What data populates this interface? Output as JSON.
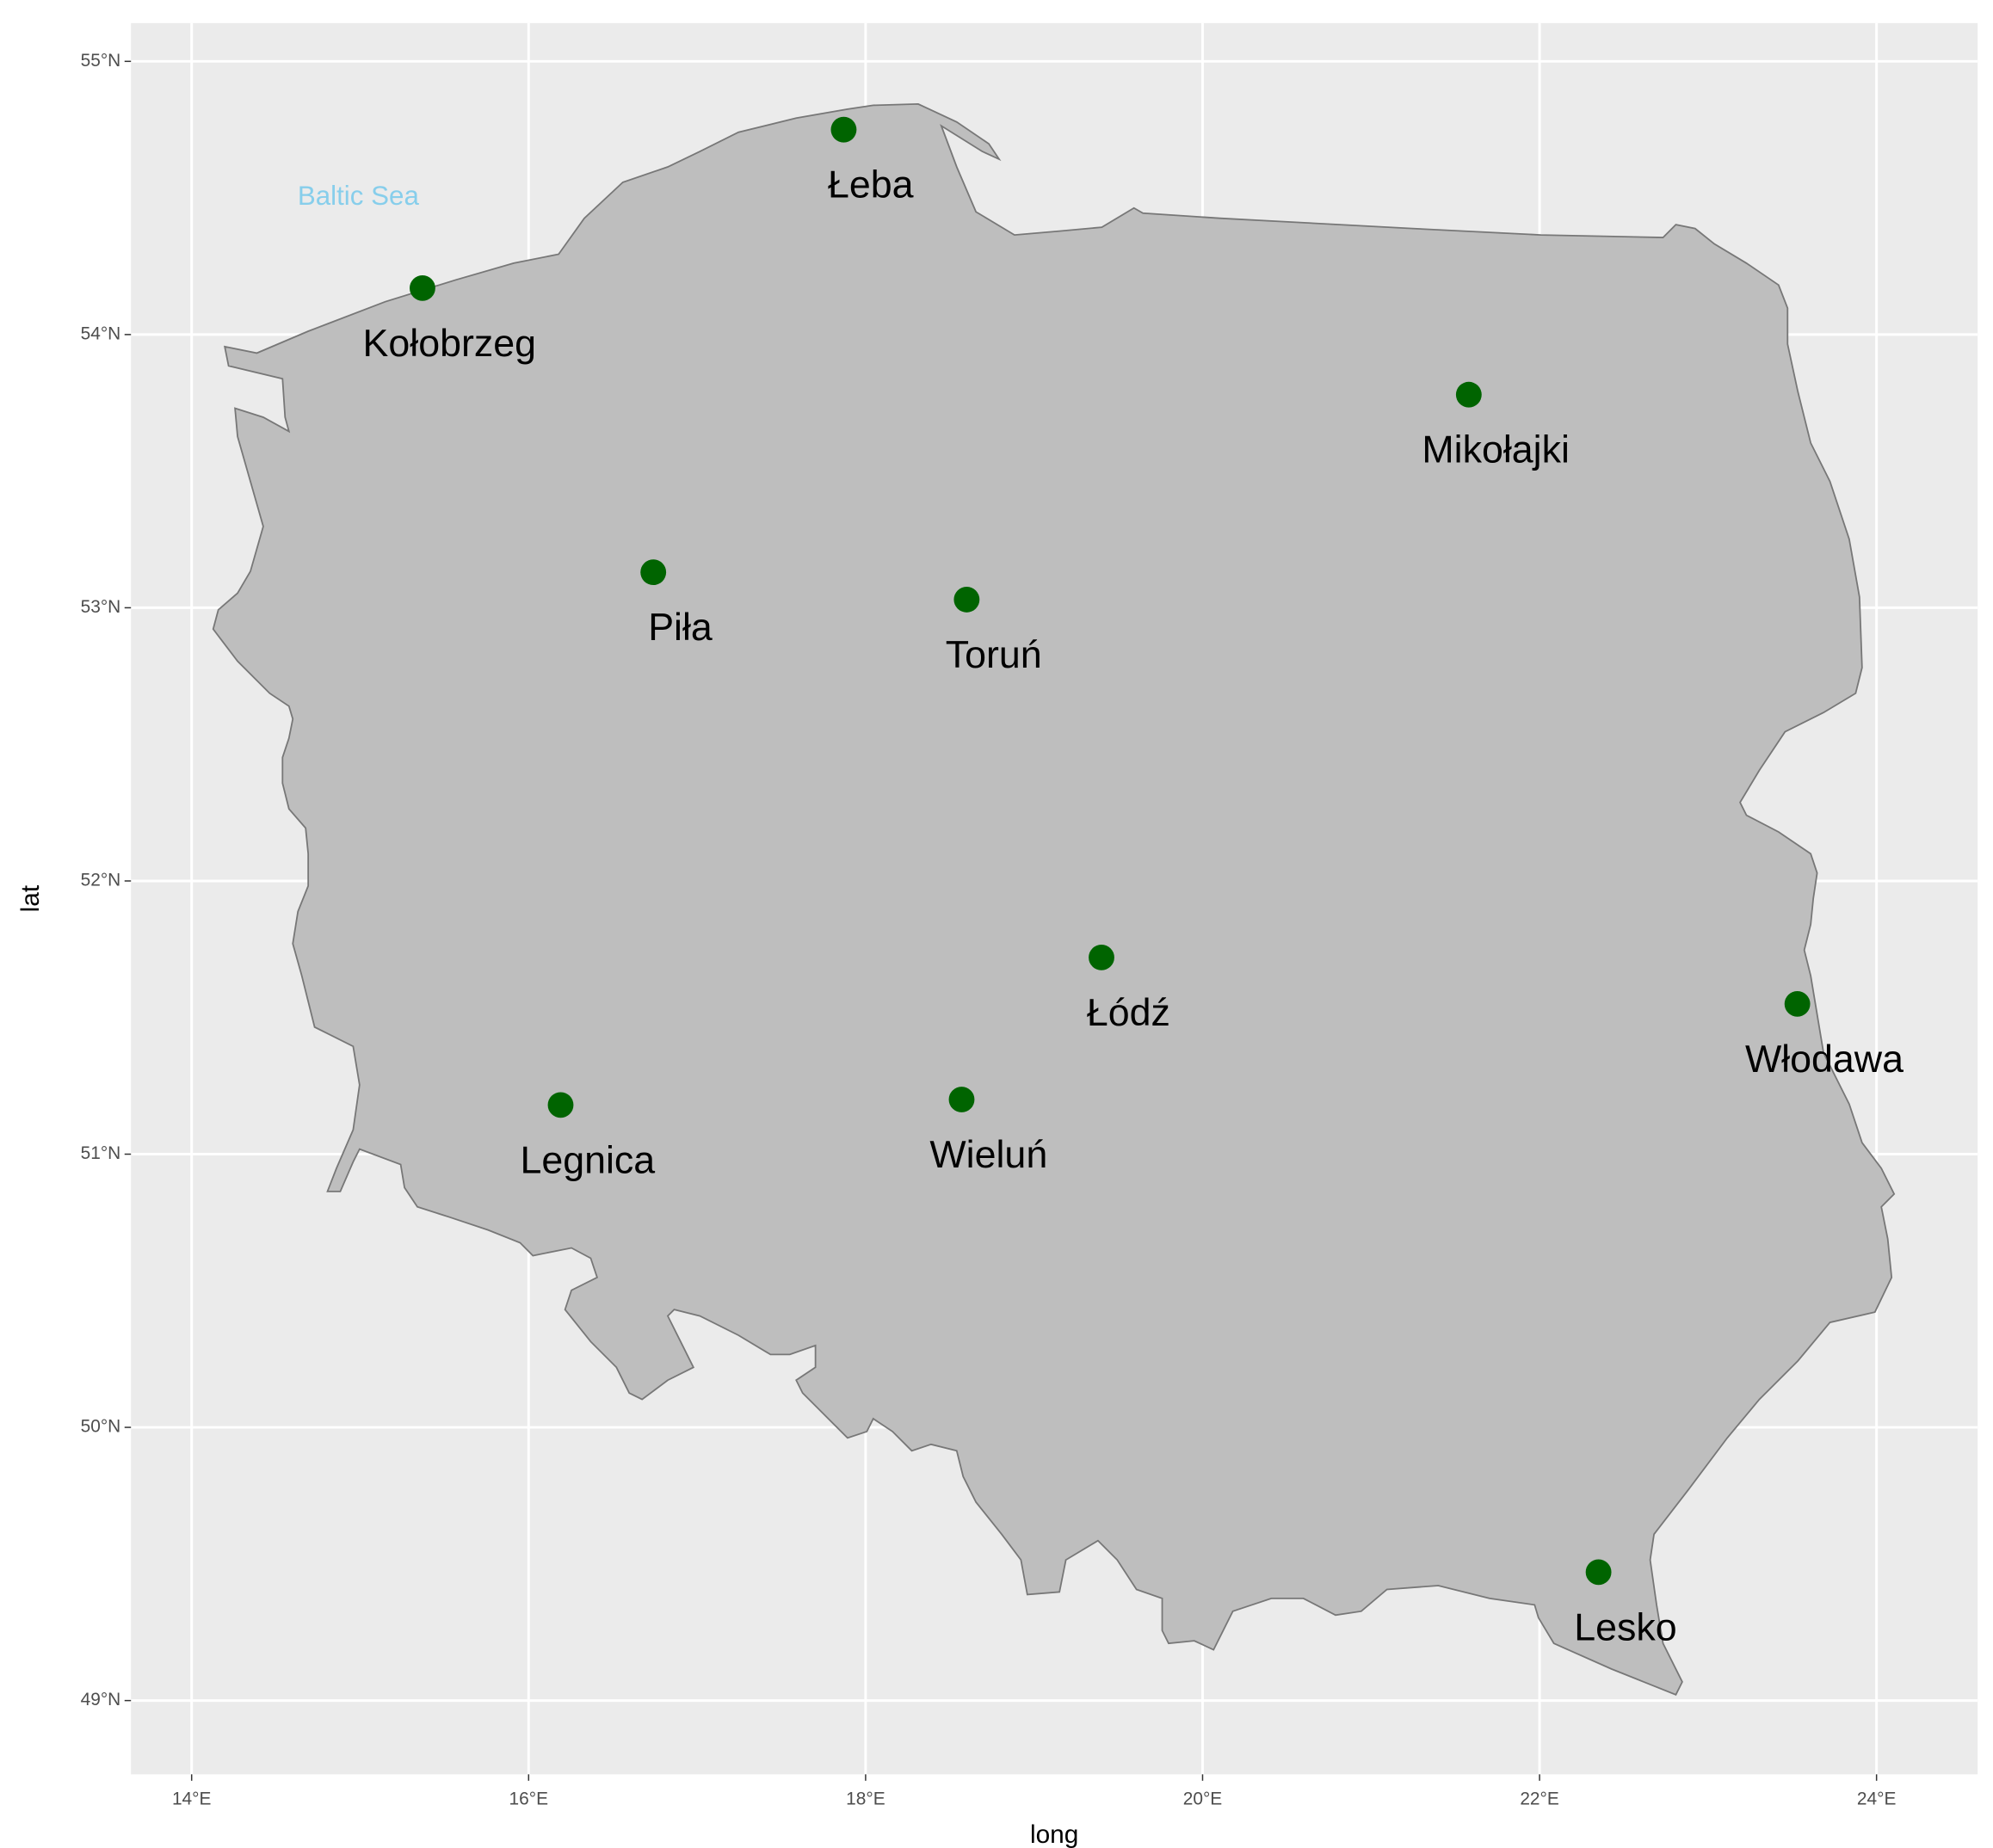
{
  "chart_data": {
    "type": "scatter",
    "xlabel": "long",
    "ylabel": "lat",
    "annotation": "Baltic Sea",
    "labels": [
      "Kołobrzeg",
      "Łeba",
      "Mikołajki",
      "Piła",
      "Toruń",
      "Łódź",
      "Włodawa",
      "Legnica",
      "Wieluń",
      "Lesko"
    ],
    "x": [
      15.37,
      17.87,
      21.58,
      16.74,
      18.6,
      19.4,
      23.53,
      16.19,
      18.57,
      22.35
    ],
    "values": [
      54.17,
      54.75,
      53.78,
      53.13,
      53.03,
      51.72,
      51.55,
      51.18,
      51.2,
      49.47
    ],
    "color": "#006400",
    "xlim": [
      13.64,
      24.6
    ],
    "ylim": [
      48.73,
      55.14
    ],
    "xticks": [
      {
        "value": 14,
        "label": "14°E"
      },
      {
        "value": 16,
        "label": "16°E"
      },
      {
        "value": 18,
        "label": "18°E"
      },
      {
        "value": 20,
        "label": "20°E"
      },
      {
        "value": 22,
        "label": "22°E"
      },
      {
        "value": 24,
        "label": "24°E"
      }
    ],
    "yticks": [
      {
        "value": 49,
        "label": "49°N"
      },
      {
        "value": 50,
        "label": "50°N"
      },
      {
        "value": 51,
        "label": "51°N"
      },
      {
        "value": 52,
        "label": "52°N"
      },
      {
        "value": 53,
        "label": "53°N"
      },
      {
        "value": 54,
        "label": "54°N"
      },
      {
        "value": 55,
        "label": "55°N"
      }
    ],
    "grid": true
  }
}
